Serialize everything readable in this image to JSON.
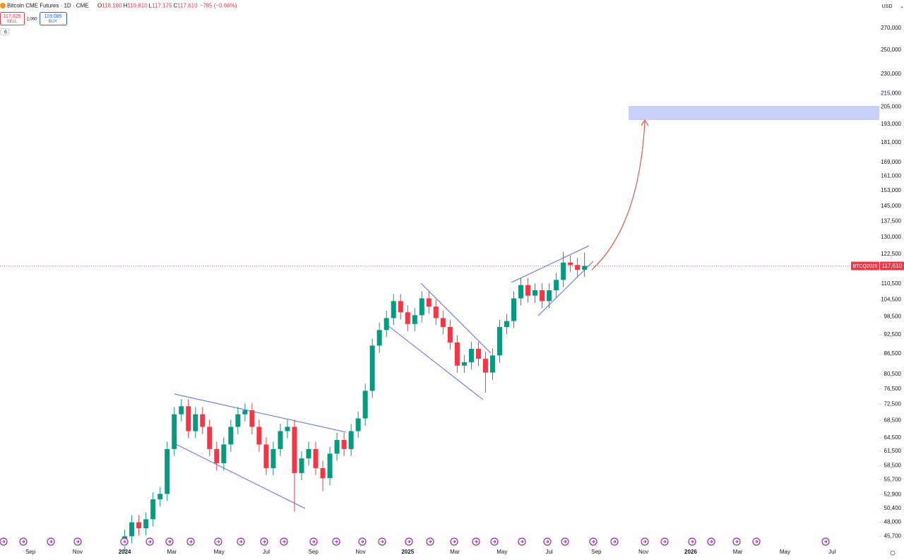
{
  "header": {
    "title": "Bitcoin CME Futures · 1D · CME",
    "open_key": "O",
    "open": "118,180",
    "high_key": "H",
    "high": "119,810",
    "low_key": "L",
    "low": "117,175",
    "close_key": "C",
    "close": "117,610",
    "change": "−785 (−0.66%)"
  },
  "trade": {
    "sell_price": "117,025",
    "sell": "SELL",
    "spread": "2,060",
    "buy_price": "119,085",
    "buy": "BUY"
  },
  "indicators": "6",
  "currency": "USD",
  "chart_data": {
    "type": "candlestick",
    "log_scale": true,
    "up_color": "#089981",
    "down_color": "#f23645",
    "symbol_tag": "BTCQ2025",
    "last_price": {
      "value": 117610,
      "label": "117,610"
    },
    "xlim": [
      -1.29,
      36.0
    ],
    "xticks": [
      {
        "value": 0,
        "label": "Sep"
      },
      {
        "value": 2,
        "label": "Nov"
      },
      {
        "value": 4,
        "label": "2024"
      },
      {
        "value": 6,
        "label": "Mar"
      },
      {
        "value": 8,
        "label": "May"
      },
      {
        "value": 10,
        "label": "Jul"
      },
      {
        "value": 12,
        "label": "Sep"
      },
      {
        "value": 14,
        "label": "Nov"
      },
      {
        "value": 16,
        "label": "2025"
      },
      {
        "value": 18,
        "label": "Mar"
      },
      {
        "value": 20,
        "label": "May"
      },
      {
        "value": 22,
        "label": "Jul"
      },
      {
        "value": 24,
        "label": "Sep"
      },
      {
        "value": 26,
        "label": "Nov"
      },
      {
        "value": 28,
        "label": "2026"
      },
      {
        "value": 30,
        "label": "Mar"
      },
      {
        "value": 32,
        "label": "May"
      },
      {
        "value": 34,
        "label": "Jul"
      }
    ],
    "ylim": [
      44300,
      298000
    ],
    "yticks": [
      {
        "value": 270000,
        "label": "270,000"
      },
      {
        "value": 250000,
        "label": "250,000"
      },
      {
        "value": 230000,
        "label": "230,000"
      },
      {
        "value": 215000,
        "label": "215,000"
      },
      {
        "value": 205000,
        "label": "205,000"
      },
      {
        "value": 193000,
        "label": "193,000"
      },
      {
        "value": 181000,
        "label": "181,000"
      },
      {
        "value": 169000,
        "label": "169,000"
      },
      {
        "value": 161000,
        "label": "161,000"
      },
      {
        "value": 153000,
        "label": "153,000"
      },
      {
        "value": 145000,
        "label": "145,000"
      },
      {
        "value": 137500,
        "label": "137,500"
      },
      {
        "value": 130000,
        "label": "130,000"
      },
      {
        "value": 122500,
        "label": "122,500"
      },
      {
        "value": 110500,
        "label": "110,500"
      },
      {
        "value": 104500,
        "label": "104,500"
      },
      {
        "value": 98500,
        "label": "98,500"
      },
      {
        "value": 92500,
        "label": "92,500"
      },
      {
        "value": 86500,
        "label": "86,500"
      },
      {
        "value": 80500,
        "label": "80,500"
      },
      {
        "value": 76500,
        "label": "76,500"
      },
      {
        "value": 72500,
        "label": "72,500"
      },
      {
        "value": 68500,
        "label": "68,500"
      },
      {
        "value": 64500,
        "label": "64,500"
      },
      {
        "value": 61500,
        "label": "61,500"
      },
      {
        "value": 58500,
        "label": "58,500"
      },
      {
        "value": 55700,
        "label": "55,700"
      },
      {
        "value": 52900,
        "label": "52,900"
      },
      {
        "value": 50400,
        "label": "50,400"
      },
      {
        "value": 48000,
        "label": "48,000"
      },
      {
        "value": 45700,
        "label": "45,700"
      }
    ],
    "x": [
      4.0,
      4.3,
      4.6,
      4.9,
      5.2,
      5.5,
      5.8,
      6.1,
      6.4,
      6.7,
      7.0,
      7.3,
      7.6,
      7.9,
      8.2,
      8.5,
      8.8,
      9.1,
      9.4,
      9.7,
      10.0,
      10.3,
      10.6,
      10.9,
      11.2,
      11.5,
      11.8,
      12.1,
      12.4,
      12.7,
      13.0,
      13.3,
      13.6,
      13.9,
      14.2,
      14.5,
      14.8,
      15.1,
      15.4,
      15.7,
      16.0,
      16.3,
      16.6,
      16.9,
      17.2,
      17.5,
      17.8,
      18.1,
      18.4,
      18.7,
      19.0,
      19.3,
      19.6,
      19.9,
      20.2,
      20.5,
      20.8,
      21.1,
      21.4,
      21.7,
      22.0,
      22.3,
      22.6,
      22.9,
      23.2,
      23.5
    ],
    "open": [
      44500,
      45700,
      48000,
      47000,
      48500,
      52000,
      53000,
      62000,
      70000,
      72000,
      66000,
      70000,
      67000,
      62000,
      59000,
      63000,
      67000,
      70000,
      71000,
      67000,
      63000,
      58000,
      62000,
      66000,
      67000,
      57000,
      60000,
      62000,
      58000,
      56000,
      61000,
      64000,
      62000,
      66000,
      69000,
      76000,
      89000,
      94000,
      98000,
      104000,
      100000,
      96000,
      99000,
      105000,
      102000,
      98000,
      95000,
      90000,
      83000,
      84000,
      88000,
      85000,
      81000,
      86000,
      95000,
      97000,
      105000,
      110000,
      106000,
      108000,
      104000,
      108000,
      112000,
      119000,
      118000,
      116000
    ],
    "high": [
      46800,
      49200,
      49200,
      49700,
      53300,
      54300,
      63600,
      71800,
      73800,
      73800,
      71800,
      71800,
      68700,
      63600,
      64600,
      68700,
      71800,
      72800,
      72800,
      68700,
      64600,
      63600,
      67700,
      68700,
      68700,
      61500,
      63600,
      63600,
      59500,
      62500,
      65600,
      65600,
      67700,
      70700,
      77900,
      91200,
      96400,
      100500,
      106600,
      106600,
      102500,
      101500,
      107600,
      107600,
      104600,
      100500,
      97400,
      92300,
      86100,
      90200,
      90200,
      87100,
      88200,
      97400,
      99400,
      107600,
      112800,
      112800,
      110700,
      110700,
      110700,
      114800,
      123500,
      122000,
      121000,
      123200
    ],
    "low": [
      43400,
      44600,
      45800,
      45800,
      47300,
      50700,
      51700,
      60500,
      68300,
      64400,
      64400,
      65300,
      60500,
      57500,
      57500,
      61400,
      65300,
      68300,
      65300,
      61400,
      56600,
      56600,
      60500,
      64400,
      49800,
      55600,
      58500,
      56600,
      53500,
      54600,
      59500,
      60500,
      60500,
      64400,
      67300,
      74100,
      86800,
      91700,
      95600,
      97500,
      93600,
      93600,
      96500,
      99500,
      95600,
      92600,
      87800,
      80900,
      80900,
      81900,
      82900,
      75500,
      79000,
      83900,
      92600,
      94600,
      102400,
      103400,
      103400,
      101400,
      101400,
      105300,
      109200,
      115100,
      113100,
      113100
    ],
    "close": [
      45700,
      48000,
      47000,
      48500,
      52000,
      53000,
      62000,
      70000,
      72000,
      66000,
      70000,
      67000,
      62000,
      59000,
      63000,
      67000,
      70000,
      71000,
      67000,
      63000,
      58000,
      62000,
      66000,
      67000,
      57000,
      60000,
      62000,
      58000,
      56000,
      61000,
      64000,
      62000,
      66000,
      69000,
      76000,
      89000,
      94000,
      98000,
      104000,
      100000,
      96000,
      99000,
      105000,
      102000,
      98000,
      95000,
      90000,
      83000,
      84000,
      88000,
      85000,
      81000,
      86000,
      95000,
      97000,
      105000,
      110000,
      106000,
      108000,
      104000,
      108000,
      112000,
      119000,
      118000,
      116000,
      117610
    ]
  }
}
